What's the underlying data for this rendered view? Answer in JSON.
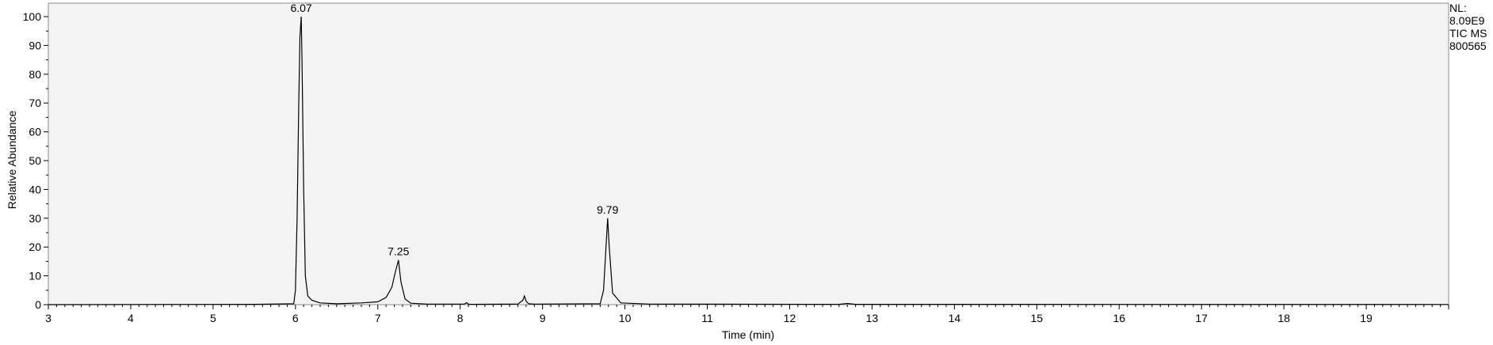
{
  "chart_data": {
    "type": "line",
    "xlabel": "Time (min)",
    "ylabel": "Relative Abundance",
    "xlim": [
      3,
      20
    ],
    "ylim": [
      0,
      100
    ],
    "x_ticks": [
      3,
      4,
      5,
      6,
      7,
      8,
      9,
      10,
      11,
      12,
      13,
      14,
      15,
      16,
      17,
      18,
      19
    ],
    "y_ticks": [
      0,
      10,
      20,
      30,
      40,
      50,
      60,
      70,
      80,
      90,
      100
    ],
    "grid": false,
    "info_lines": [
      "NL:",
      "8.09E9",
      "TIC  MS",
      "800565"
    ],
    "peaks": [
      {
        "x": 6.07,
        "y": 100,
        "label": "6.07"
      },
      {
        "x": 7.25,
        "y": 15.5,
        "label": "7.25"
      },
      {
        "x": 9.79,
        "y": 30,
        "label": "9.79"
      }
    ],
    "series": [
      {
        "x": [
          3.0,
          5.5,
          5.98,
          6.0,
          6.02,
          6.04,
          6.055,
          6.07,
          6.08,
          6.1,
          6.12,
          6.15,
          6.2,
          6.3,
          6.5,
          6.8,
          7.0,
          7.1,
          7.17,
          7.21,
          7.25,
          7.28,
          7.33,
          7.4,
          7.6,
          8.05,
          8.08,
          8.1,
          8.13,
          8.7,
          8.76,
          8.78,
          8.8,
          8.83,
          8.9,
          9.7,
          9.74,
          9.77,
          9.79,
          9.81,
          9.85,
          9.95,
          10.3,
          12.6,
          12.7,
          12.8,
          20.0
        ],
        "y": [
          0,
          0.1,
          0.3,
          5,
          30,
          70,
          93,
          100,
          85,
          40,
          10,
          3,
          1.5,
          0.6,
          0.3,
          0.6,
          1.0,
          2.5,
          6,
          11,
          15.5,
          8,
          2,
          0.5,
          0.2,
          0.2,
          0.7,
          0.2,
          0.1,
          0.2,
          1.5,
          3,
          1.2,
          0.3,
          0.2,
          0.3,
          5,
          20,
          30,
          20,
          4,
          0.6,
          0.2,
          0.1,
          0.4,
          0.1,
          0.05
        ]
      }
    ]
  }
}
